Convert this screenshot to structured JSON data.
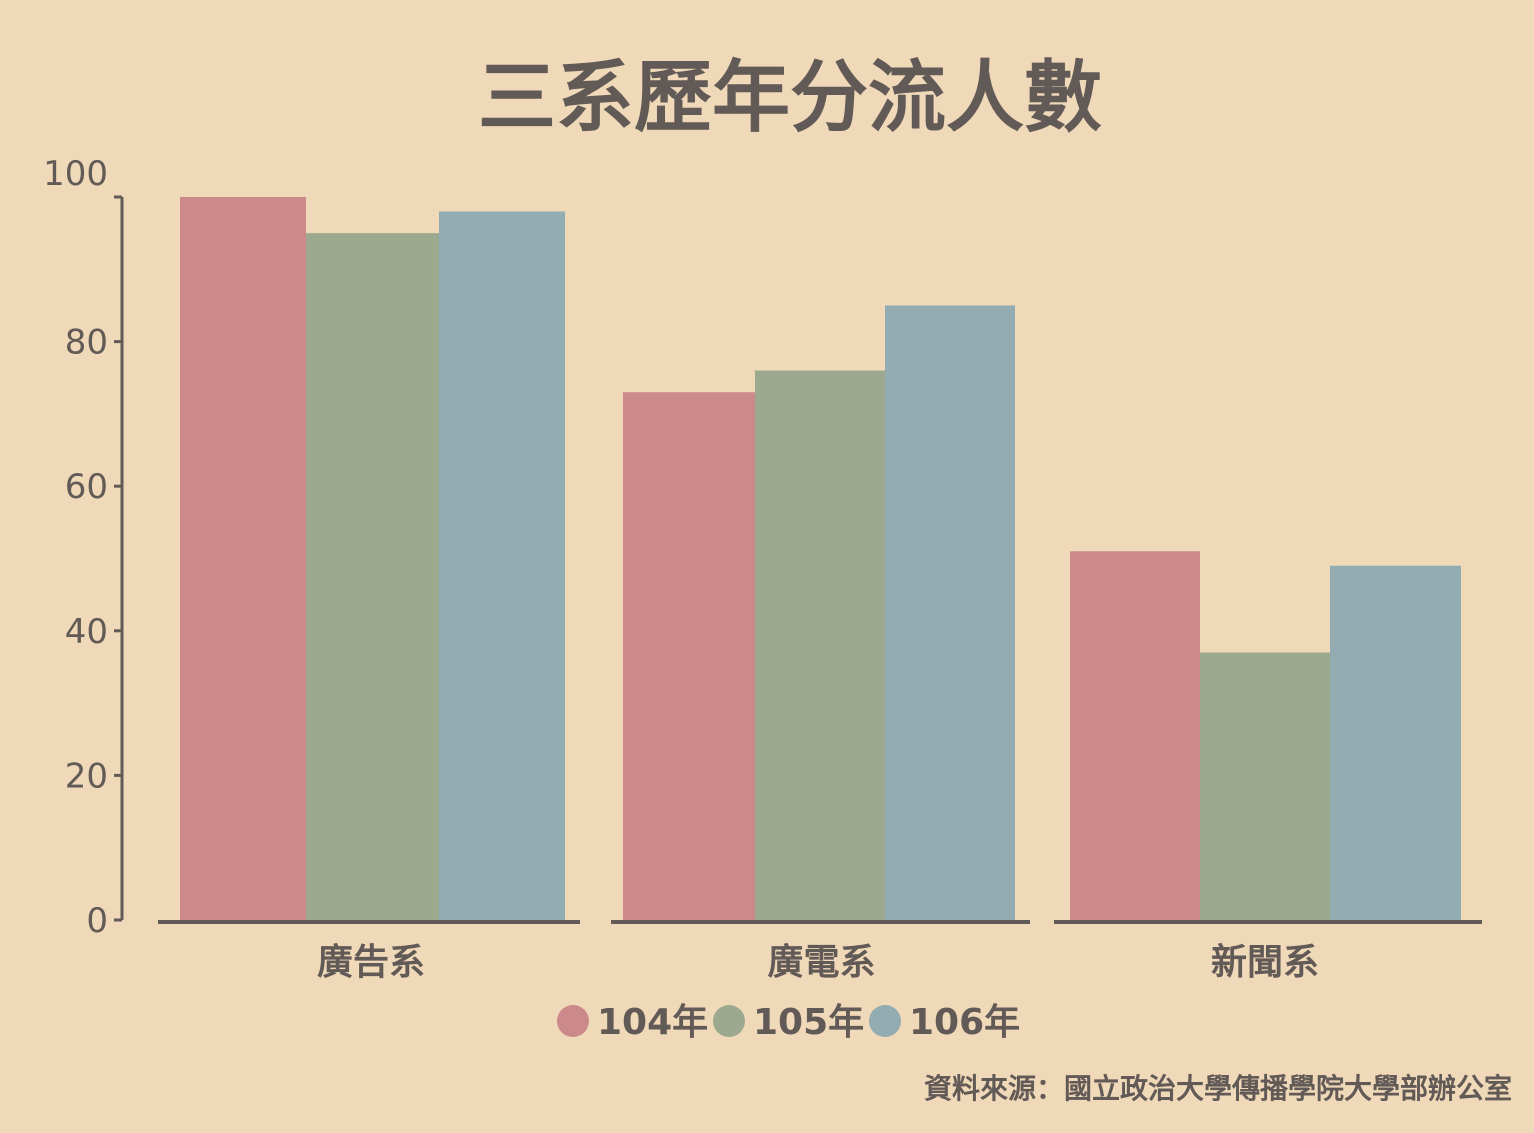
{
  "colors": {
    "background": "#f0d9b9",
    "text": "#625a56",
    "axis": "#625a56"
  },
  "chart_data": {
    "type": "bar",
    "title": "三系歷年分流人數",
    "xlabel": "",
    "ylabel": "",
    "categories": [
      "廣告系",
      "廣電系",
      "新聞系"
    ],
    "series": [
      {
        "name": "104年",
        "color": "#cb898a",
        "values": [
          100,
          73,
          51
        ]
      },
      {
        "name": "105年",
        "color": "#9da98e",
        "values": [
          95,
          76,
          37
        ]
      },
      {
        "name": "106年",
        "color": "#93acb2",
        "values": [
          98,
          85,
          49
        ]
      }
    ],
    "ylim": [
      0,
      100
    ],
    "yticks": [
      "0",
      "20",
      "40",
      "60",
      "80",
      "100"
    ],
    "grid": false,
    "legend_position": "bottom-center",
    "source": "資料來源：國立政治大學傳播學院大學部辦公室"
  }
}
